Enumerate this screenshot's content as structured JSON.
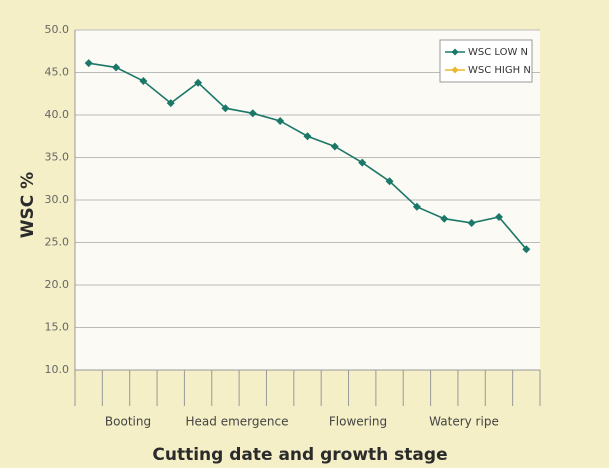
{
  "chart_data": {
    "type": "line",
    "x_label": "Cutting date and growth stage",
    "y_label": "WSC %",
    "categories": [
      null,
      null,
      null,
      null,
      null,
      null,
      null,
      null,
      null,
      null,
      null,
      null,
      null,
      null,
      null,
      null,
      null
    ],
    "stage_labels": [
      "Booting",
      "Head emergence",
      "Flowering",
      "Watery ripe"
    ],
    "series": [
      {
        "name": "WSC LOW N",
        "color": "#1b7868",
        "values": [
          46.1,
          45.6,
          44.0,
          41.4,
          43.8,
          40.8,
          40.2,
          39.3,
          37.5,
          36.3,
          34.4,
          32.2,
          29.2,
          27.8,
          27.3,
          28.0,
          24.2
        ]
      },
      {
        "name": "WSC HIGH N",
        "color": "#e8b830",
        "values": [
          null,
          null,
          null,
          null,
          null,
          null,
          null,
          null,
          null,
          null,
          null,
          null,
          null,
          null,
          null,
          null,
          null
        ]
      }
    ],
    "ylim": [
      10,
      50
    ],
    "yticks": [
      {
        "value": 10,
        "label": "10.0"
      },
      {
        "value": 15,
        "label": "15.0"
      },
      {
        "value": 20,
        "label": "20.0"
      },
      {
        "value": 25,
        "label": "25.0"
      },
      {
        "value": 30,
        "label": "30.0"
      },
      {
        "value": 35,
        "label": "35.0"
      },
      {
        "value": 40,
        "label": "40.0"
      },
      {
        "value": 45,
        "label": "45.0"
      },
      {
        "value": 50,
        "label": "50.0"
      }
    ],
    "grid": true,
    "legend_position": "upper right"
  }
}
